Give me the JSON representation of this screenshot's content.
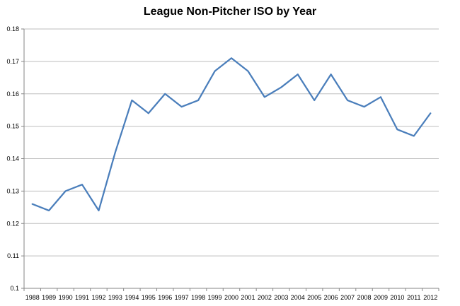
{
  "chart_data": {
    "type": "line",
    "title": "League Non-Pitcher ISO by Year",
    "xlabel": "",
    "ylabel": "",
    "x": [
      "1988",
      "1989",
      "1990",
      "1991",
      "1992",
      "1993",
      "1994",
      "1995",
      "1996",
      "1997",
      "1998",
      "1999",
      "2000",
      "2001",
      "2002",
      "2003",
      "2004",
      "2005",
      "2006",
      "2007",
      "2008",
      "2009",
      "2010",
      "2011",
      "2012"
    ],
    "series": [
      {
        "values": [
          0.126,
          0.124,
          0.13,
          0.132,
          0.124,
          0.142,
          0.158,
          0.154,
          0.16,
          0.156,
          0.158,
          0.167,
          0.171,
          0.167,
          0.159,
          0.162,
          0.166,
          0.158,
          0.166,
          0.158,
          0.156,
          0.159,
          0.149,
          0.147,
          0.154
        ]
      }
    ],
    "ylim": [
      0.1,
      0.18
    ],
    "yticks": [
      "0.1",
      "0.11",
      "0.12",
      "0.13",
      "0.14",
      "0.15",
      "0.16",
      "0.17",
      "0.18"
    ],
    "grid": true,
    "legend": "none",
    "colors": {
      "line": "#4A7EBB",
      "grid": "#BEBEBE",
      "axis": "#868686"
    }
  }
}
